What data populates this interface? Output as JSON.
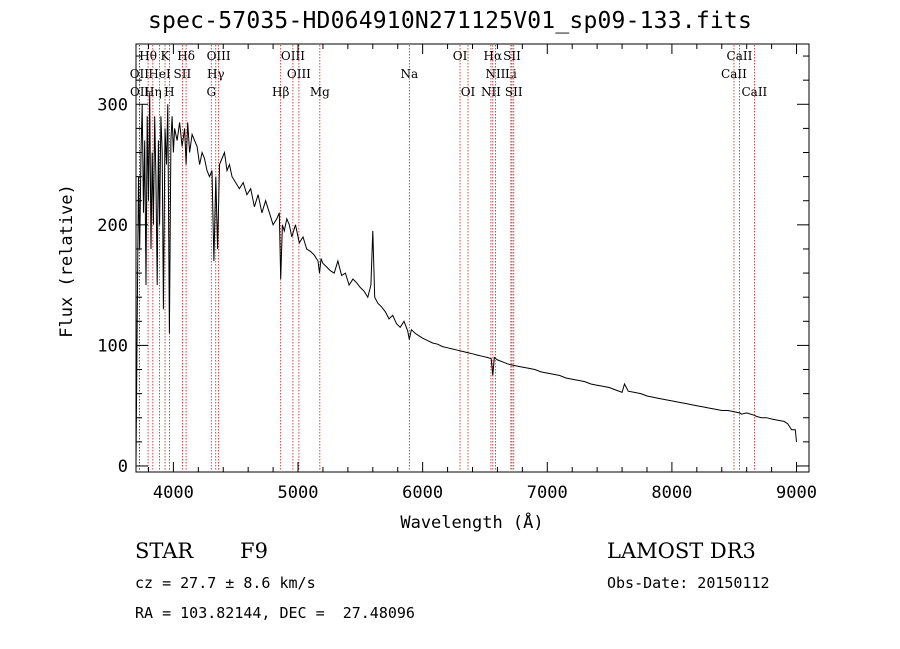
{
  "title": "spec-57035-HD064910N271125V01_sp09-133.fits",
  "info": {
    "object_class": "STAR",
    "subclass": "F9",
    "cz": "cz = 27.7 ± 8.6 km/s",
    "coords": "RA = 103.82144, DEC =  27.48096",
    "survey": "LAMOST DR3",
    "obs_date": "Obs-Date: 20150112"
  },
  "chart_data": {
    "type": "line",
    "title": "spec-57035-HD064910N271125V01_sp09-133.fits",
    "xlabel": "Wavelength (Å)",
    "ylabel": "Flux (relative)",
    "xlim": [
      3700,
      9100
    ],
    "ylim": [
      -5,
      350
    ],
    "xticks": [
      4000,
      5000,
      6000,
      7000,
      8000,
      9000
    ],
    "yticks": [
      0,
      100,
      200,
      300
    ],
    "series": [
      {
        "name": "spectrum",
        "x": [
          3700,
          3710,
          3720,
          3730,
          3740,
          3750,
          3760,
          3770,
          3780,
          3790,
          3800,
          3810,
          3820,
          3830,
          3840,
          3850,
          3860,
          3870,
          3880,
          3889,
          3900,
          3910,
          3920,
          3933,
          3945,
          3955,
          3968,
          3980,
          3990,
          4000,
          4010,
          4030,
          4050,
          4070,
          4090,
          4102,
          4115,
          4130,
          4150,
          4170,
          4190,
          4210,
          4230,
          4250,
          4270,
          4290,
          4310,
          4325,
          4340,
          4355,
          4370,
          4390,
          4410,
          4430,
          4450,
          4470,
          4500,
          4530,
          4560,
          4590,
          4620,
          4650,
          4680,
          4710,
          4740,
          4770,
          4800,
          4830,
          4850,
          4861,
          4875,
          4890,
          4910,
          4930,
          4950,
          4980,
          5010,
          5040,
          5070,
          5100,
          5130,
          5160,
          5172,
          5185,
          5200,
          5230,
          5260,
          5290,
          5320,
          5350,
          5380,
          5410,
          5440,
          5470,
          5500,
          5530,
          5560,
          5585,
          5600,
          5615,
          5640,
          5670,
          5700,
          5730,
          5760,
          5790,
          5820,
          5850,
          5880,
          5893,
          5910,
          5940,
          5970,
          6000,
          6040,
          6080,
          6120,
          6160,
          6200,
          6240,
          6280,
          6320,
          6360,
          6400,
          6440,
          6480,
          6520,
          6550,
          6563,
          6575,
          6600,
          6650,
          6700,
          6750,
          6800,
          6850,
          6900,
          6950,
          7000,
          7050,
          7100,
          7150,
          7200,
          7250,
          7300,
          7350,
          7400,
          7450,
          7500,
          7550,
          7600,
          7620,
          7650,
          7700,
          7750,
          7800,
          7850,
          7900,
          7950,
          8000,
          8050,
          8100,
          8150,
          8200,
          8250,
          8300,
          8350,
          8400,
          8450,
          8500,
          8542,
          8560,
          8600,
          8662,
          8680,
          8720,
          8760,
          8800,
          8850,
          8900,
          8930,
          8960,
          8990,
          9000
        ],
        "y": [
          0,
          120,
          240,
          180,
          260,
          300,
          210,
          270,
          150,
          290,
          220,
          310,
          180,
          260,
          200,
          290,
          240,
          150,
          270,
          200,
          290,
          260,
          130,
          280,
          250,
          300,
          110,
          270,
          290,
          260,
          280,
          270,
          285,
          265,
          280,
          250,
          285,
          260,
          275,
          270,
          265,
          250,
          260,
          255,
          245,
          240,
          245,
          170,
          240,
          180,
          250,
          255,
          260,
          245,
          250,
          240,
          235,
          230,
          235,
          225,
          230,
          215,
          225,
          210,
          220,
          210,
          200,
          205,
          210,
          155,
          200,
          195,
          205,
          200,
          190,
          200,
          185,
          190,
          180,
          178,
          175,
          170,
          160,
          172,
          168,
          165,
          162,
          160,
          170,
          158,
          160,
          150,
          155,
          152,
          148,
          145,
          140,
          150,
          195,
          140,
          135,
          132,
          128,
          122,
          125,
          118,
          115,
          120,
          112,
          105,
          113,
          110,
          108,
          106,
          104,
          102,
          101,
          99,
          98,
          97,
          96,
          95,
          94,
          93,
          92,
          91,
          90,
          89,
          75,
          90,
          88,
          86,
          84,
          83,
          82,
          81,
          80,
          78,
          77,
          76,
          75,
          73,
          72,
          71,
          70,
          68,
          67,
          66,
          65,
          63,
          61,
          68,
          62,
          61,
          60,
          58,
          57,
          56,
          55,
          54,
          53,
          52,
          51,
          50,
          49,
          48,
          47,
          46,
          46,
          45,
          44,
          43,
          44,
          42,
          41,
          40,
          40,
          39,
          38,
          37,
          35,
          30,
          30,
          20
        ]
      }
    ],
    "lines_top": [
      {
        "label": "Hθ",
        "x": 3797
      },
      {
        "label": "K",
        "x": 3933
      },
      {
        "label": "Hδ",
        "x": 4102
      },
      {
        "label": "OIII",
        "x": 4363
      },
      {
        "label": "OIII",
        "x": 4959
      },
      {
        "label": "OI",
        "x": 6300
      },
      {
        "label": "Hα",
        "x": 6563
      },
      {
        "label": "SII",
        "x": 6717
      },
      {
        "label": "CaII",
        "x": 8542
      }
    ],
    "lines_mid": [
      {
        "label": "OII",
        "x": 3727
      },
      {
        "label": "HeI",
        "x": 3889
      },
      {
        "label": "SII",
        "x": 4072
      },
      {
        "label": "Hγ",
        "x": 4340
      },
      {
        "label": "OIII",
        "x": 5007
      },
      {
        "label": "Na",
        "x": 5893
      },
      {
        "label": "NII",
        "x": 6584
      },
      {
        "label": "Li",
        "x": 6708
      },
      {
        "label": "CaII",
        "x": 8498
      }
    ],
    "lines_low": [
      {
        "label": "OII",
        "x": 3729
      },
      {
        "label": "Hη",
        "x": 3835
      },
      {
        "label": "H",
        "x": 3968
      },
      {
        "label": "G",
        "x": 4304
      },
      {
        "label": "Hβ",
        "x": 4861
      },
      {
        "label": "Mg",
        "x": 5175
      },
      {
        "label": "OI",
        "x": 6364
      },
      {
        "label": "NII",
        "x": 6548
      },
      {
        "label": "SII",
        "x": 6731
      },
      {
        "label": "CaII",
        "x": 8662
      }
    ],
    "line_color": "#b22222"
  }
}
